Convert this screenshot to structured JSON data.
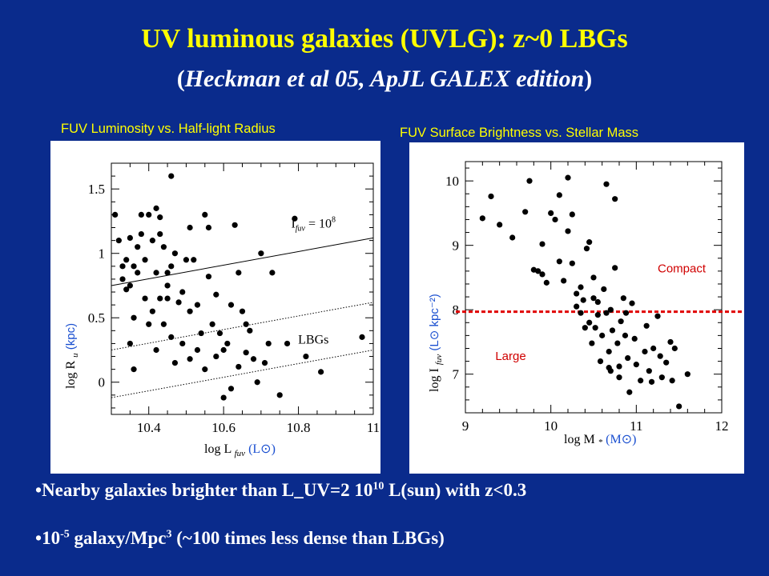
{
  "slide": {
    "title": "UV luminous galaxies (UVLG): z~0 LBGs",
    "subtitle_open": "(",
    "subtitle_text": "Heckman et al 05, ApJL GALEX edition",
    "subtitle_close": ")",
    "bullets": [
      {
        "marker": "•",
        "text_a": "Nearby galaxies brighter  than L_UV=2 10",
        "sup": "10",
        "text_b": " L(sun) with z<0.3"
      },
      {
        "marker": "•",
        "text_a": "10",
        "sup": "-5",
        "text_b": " galaxy/Mpc",
        "sup2": "3",
        "text_c": " (~100 times less dense than LBGs)"
      }
    ]
  },
  "colors": {
    "background": "#0a2b8c",
    "title": "#ffff00",
    "annotation_blue": "#1a4fd0",
    "divider_red": "#e00000"
  },
  "chart_data": [
    {
      "type": "scatter",
      "title": "FUV Luminosity vs. Half-light Radius",
      "xlabel": "log L",
      "xlabel_sub": "fuv",
      "xunit": "(L⊙)",
      "ylabel": "log R",
      "ylabel_sub": "u",
      "yunit": "(kpc)",
      "xlim": [
        10.3,
        11.0
      ],
      "ylim": [
        -0.25,
        1.7
      ],
      "xticks": [
        10.4,
        10.6,
        10.8,
        11
      ],
      "xtick_labels": [
        "10.4",
        "10.6",
        "10.8",
        "11"
      ],
      "yticks": [
        0,
        0.5,
        1,
        1.5
      ],
      "ytick_labels": [
        "0",
        "0.5",
        "1",
        "1.5"
      ],
      "lines": [
        {
          "style": "solid",
          "x": [
            10.3,
            11.0
          ],
          "y": [
            0.75,
            1.12
          ],
          "label": "I",
          "label_sub": "fuv",
          "label_rest": " = 10",
          "label_sup": "8",
          "label_at": [
            10.84,
            1.2
          ]
        },
        {
          "style": "dotted",
          "x": [
            10.3,
            11.0
          ],
          "y": [
            0.25,
            0.62
          ],
          "label": "LBGs",
          "label_at": [
            10.84,
            0.3
          ]
        },
        {
          "style": "dotted",
          "x": [
            10.3,
            11.0
          ],
          "y": [
            -0.12,
            0.25
          ]
        }
      ],
      "points": [
        [
          10.31,
          1.3
        ],
        [
          10.32,
          1.1
        ],
        [
          10.33,
          0.8
        ],
        [
          10.33,
          0.9
        ],
        [
          10.34,
          0.72
        ],
        [
          10.34,
          0.95
        ],
        [
          10.35,
          1.12
        ],
        [
          10.35,
          0.75
        ],
        [
          10.36,
          0.9
        ],
        [
          10.36,
          0.5
        ],
        [
          10.35,
          0.3
        ],
        [
          10.36,
          0.1
        ],
        [
          10.37,
          1.05
        ],
        [
          10.37,
          0.85
        ],
        [
          10.38,
          1.3
        ],
        [
          10.38,
          1.15
        ],
        [
          10.39,
          0.95
        ],
        [
          10.39,
          0.65
        ],
        [
          10.4,
          1.3
        ],
        [
          10.4,
          0.45
        ],
        [
          10.41,
          1.1
        ],
        [
          10.41,
          0.55
        ],
        [
          10.42,
          0.85
        ],
        [
          10.42,
          0.25
        ],
        [
          10.42,
          1.35
        ],
        [
          10.43,
          1.15
        ],
        [
          10.43,
          1.28
        ],
        [
          10.43,
          0.65
        ],
        [
          10.44,
          1.05
        ],
        [
          10.44,
          0.45
        ],
        [
          10.45,
          0.65
        ],
        [
          10.45,
          0.75
        ],
        [
          10.45,
          0.85
        ],
        [
          10.46,
          1.6
        ],
        [
          10.46,
          0.35
        ],
        [
          10.46,
          0.9
        ],
        [
          10.47,
          1.0
        ],
        [
          10.48,
          0.62
        ],
        [
          10.49,
          0.3
        ],
        [
          10.49,
          0.7
        ],
        [
          10.5,
          0.95
        ],
        [
          10.51,
          0.55
        ],
        [
          10.51,
          1.2
        ],
        [
          10.52,
          0.95
        ],
        [
          10.53,
          0.6
        ],
        [
          10.54,
          0.38
        ],
        [
          10.55,
          1.3
        ],
        [
          10.56,
          1.2
        ],
        [
          10.56,
          0.82
        ],
        [
          10.57,
          0.45
        ],
        [
          10.58,
          0.68
        ],
        [
          10.59,
          0.38
        ],
        [
          10.6,
          0.25
        ],
        [
          10.61,
          0.3
        ],
        [
          10.62,
          -0.05
        ],
        [
          10.63,
          1.22
        ],
        [
          10.64,
          0.12
        ],
        [
          10.65,
          0.55
        ],
        [
          10.66,
          0.45
        ],
        [
          10.67,
          0.4
        ],
        [
          10.68,
          0.18
        ],
        [
          10.69,
          0.0
        ],
        [
          10.7,
          1.0
        ],
        [
          10.71,
          0.15
        ],
        [
          10.72,
          0.3
        ],
        [
          10.73,
          0.85
        ],
        [
          10.75,
          -0.1
        ],
        [
          10.77,
          0.3
        ],
        [
          10.79,
          1.27
        ],
        [
          10.82,
          0.2
        ],
        [
          10.86,
          0.08
        ],
        [
          10.97,
          0.35
        ],
        [
          10.55,
          0.1
        ],
        [
          10.53,
          0.25
        ],
        [
          10.51,
          0.18
        ],
        [
          10.62,
          0.6
        ],
        [
          10.58,
          0.2
        ],
        [
          10.6,
          -0.12
        ],
        [
          10.66,
          0.23
        ],
        [
          10.64,
          0.85
        ],
        [
          10.47,
          0.15
        ]
      ]
    },
    {
      "type": "scatter",
      "title": "FUV Surface Brightness vs. Stellar Mass",
      "xlabel": "log M",
      "xlabel_sub": "*",
      "xunit": "(M⊙)",
      "ylabel": "log I",
      "ylabel_sub": "fuv",
      "yunit": "(L⊙ kpc⁻²)",
      "xlim": [
        9.0,
        12.0
      ],
      "ylim": [
        6.4,
        10.3
      ],
      "xticks": [
        9,
        10,
        11,
        12
      ],
      "xtick_labels": [
        "9",
        "10",
        "11",
        "12"
      ],
      "yticks": [
        7,
        8,
        9,
        10
      ],
      "ytick_labels": [
        "7",
        "8",
        "9",
        "10"
      ],
      "divider": {
        "y": 7.97,
        "style": "dotted",
        "color": "#e00000"
      },
      "annotations": [
        {
          "text": "Compact",
          "at": [
            11.25,
            8.58
          ]
        },
        {
          "text": "Large",
          "at": [
            9.35,
            7.22
          ]
        }
      ],
      "points": [
        [
          9.2,
          9.42
        ],
        [
          9.3,
          9.76
        ],
        [
          9.4,
          9.32
        ],
        [
          9.55,
          9.12
        ],
        [
          9.7,
          9.52
        ],
        [
          9.75,
          10.0
        ],
        [
          9.8,
          8.62
        ],
        [
          9.85,
          8.6
        ],
        [
          9.9,
          9.02
        ],
        [
          9.9,
          8.55
        ],
        [
          9.95,
          8.42
        ],
        [
          10.0,
          9.5
        ],
        [
          10.05,
          9.4
        ],
        [
          10.1,
          9.78
        ],
        [
          10.1,
          8.75
        ],
        [
          10.15,
          8.45
        ],
        [
          10.2,
          9.22
        ],
        [
          10.25,
          9.48
        ],
        [
          10.25,
          8.72
        ],
        [
          10.3,
          8.05
        ],
        [
          10.3,
          8.25
        ],
        [
          10.35,
          7.95
        ],
        [
          10.35,
          8.35
        ],
        [
          10.38,
          8.15
        ],
        [
          10.4,
          7.72
        ],
        [
          10.45,
          7.8
        ],
        [
          10.45,
          9.05
        ],
        [
          10.5,
          8.5
        ],
        [
          10.5,
          8.18
        ],
        [
          10.55,
          7.92
        ],
        [
          10.55,
          8.12
        ],
        [
          10.6,
          7.6
        ],
        [
          10.62,
          8.32
        ],
        [
          10.65,
          7.95
        ],
        [
          10.68,
          7.35
        ],
        [
          10.7,
          7.05
        ],
        [
          10.7,
          8.0
        ],
        [
          10.72,
          7.68
        ],
        [
          10.75,
          8.65
        ],
        [
          10.75,
          9.72
        ],
        [
          10.78,
          7.48
        ],
        [
          10.8,
          7.12
        ],
        [
          10.82,
          7.82
        ],
        [
          10.85,
          8.18
        ],
        [
          10.87,
          7.6
        ],
        [
          10.88,
          7.95
        ],
        [
          10.9,
          7.25
        ],
        [
          10.92,
          6.72
        ],
        [
          10.95,
          8.1
        ],
        [
          11.0,
          7.15
        ],
        [
          11.05,
          6.9
        ],
        [
          11.1,
          7.35
        ],
        [
          11.12,
          7.75
        ],
        [
          11.15,
          7.05
        ],
        [
          11.2,
          7.4
        ],
        [
          11.25,
          7.9
        ],
        [
          11.28,
          7.28
        ],
        [
          11.3,
          6.95
        ],
        [
          11.35,
          7.18
        ],
        [
          11.4,
          7.5
        ],
        [
          11.42,
          6.9
        ],
        [
          11.45,
          7.4
        ],
        [
          11.5,
          6.5
        ],
        [
          11.6,
          7.0
        ],
        [
          10.8,
          6.95
        ],
        [
          10.58,
          7.2
        ],
        [
          10.42,
          8.95
        ],
        [
          10.65,
          9.95
        ],
        [
          10.48,
          7.48
        ],
        [
          10.2,
          10.05
        ],
        [
          10.52,
          7.72
        ],
        [
          10.98,
          7.55
        ],
        [
          11.18,
          6.88
        ],
        [
          10.68,
          7.1
        ]
      ]
    }
  ]
}
